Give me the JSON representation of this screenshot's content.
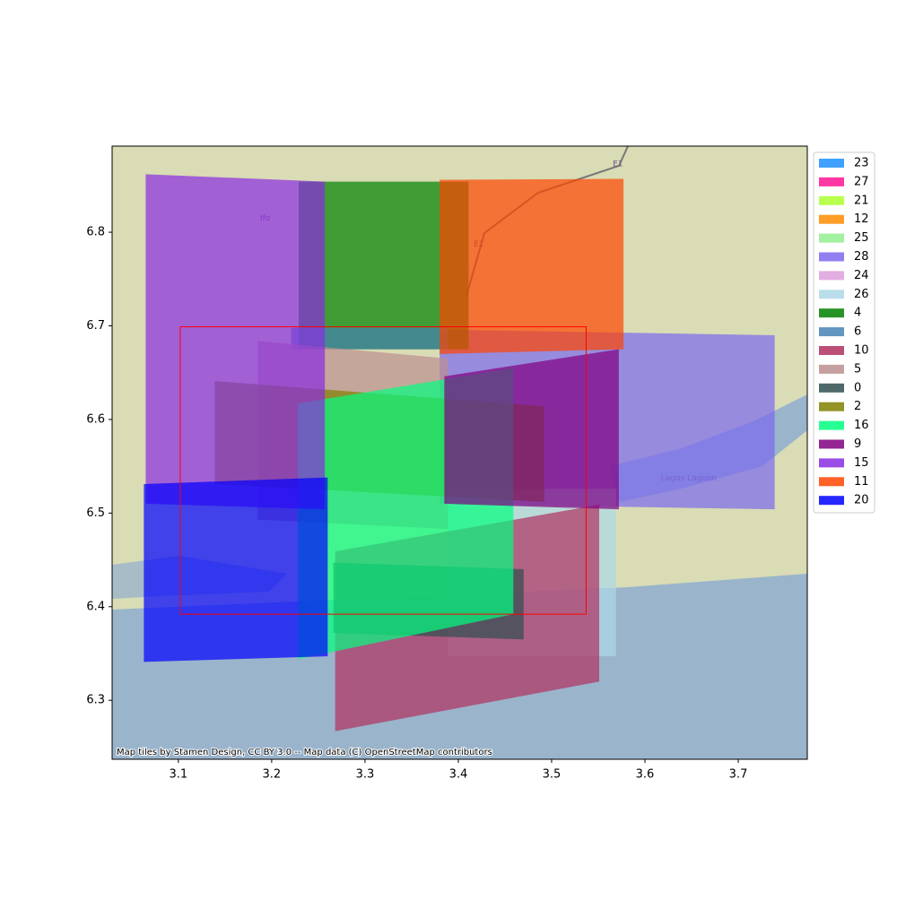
{
  "chart_data": {
    "type": "map",
    "xlim": [
      3.029,
      3.774
    ],
    "ylim": [
      6.237,
      6.892
    ],
    "xticks": [
      3.1,
      3.2,
      3.3,
      3.4,
      3.5,
      3.6,
      3.7
    ],
    "yticks": [
      6.3,
      6.4,
      6.5,
      6.6,
      6.7,
      6.8
    ],
    "bbox": {
      "color": "#ff0000",
      "x": [
        3.102,
        3.537
      ],
      "y": [
        6.392,
        6.699
      ]
    },
    "attribution": "Map tiles by Stamen Design, CC BY 3.0 -- Map data (C) OpenStreetMap contributors",
    "map_labels": [
      {
        "text": "Ifo",
        "x": 3.193,
        "y": 6.815
      },
      {
        "text": "Lagos Lagoon",
        "x": 3.647,
        "y": 6.537
      },
      {
        "text": "E1",
        "x": 3.422,
        "y": 6.787
      },
      {
        "text": "E1",
        "x": 3.571,
        "y": 6.873
      }
    ],
    "series": [
      {
        "name": "23",
        "color": "#1e90ff"
      },
      {
        "name": "27",
        "color": "#ff1493"
      },
      {
        "name": "21",
        "color": "#adff2f"
      },
      {
        "name": "12",
        "color": "#ff8c00"
      },
      {
        "name": "25",
        "color": "#90ee90"
      },
      {
        "name": "28",
        "color": "#7b68ee",
        "x": [
          3.38,
          3.739,
          3.739,
          3.38
        ],
        "y": [
          6.696,
          6.69,
          6.504,
          6.51
        ]
      },
      {
        "name": "24",
        "color": "#dda0dd"
      },
      {
        "name": "26",
        "color": "#add8e6",
        "x": [
          3.389,
          3.569,
          3.569,
          3.389
        ],
        "y": [
          6.526,
          6.526,
          6.347,
          6.347
        ]
      },
      {
        "name": "4",
        "color": "#008000",
        "x": [
          3.229,
          3.411,
          3.411,
          3.229
        ],
        "y": [
          6.854,
          6.854,
          6.675,
          6.675
        ]
      },
      {
        "name": "6",
        "color": "#4682b4",
        "x": [
          3.221,
          3.389,
          3.389,
          3.221
        ],
        "y": [
          6.698,
          6.698,
          6.675,
          6.675
        ]
      },
      {
        "name": "10",
        "color": "#b03060",
        "x": [
          3.268,
          3.551,
          3.551,
          3.268
        ],
        "y": [
          6.459,
          6.509,
          6.32,
          6.267
        ]
      },
      {
        "name": "5",
        "color": "#bc8f8f",
        "x": [
          3.185,
          3.389,
          3.389,
          3.185
        ],
        "y": [
          6.684,
          6.665,
          6.483,
          6.493
        ]
      },
      {
        "name": "0",
        "color": "#2f4f4f",
        "x": [
          3.266,
          3.47,
          3.47,
          3.266
        ],
        "y": [
          6.447,
          6.44,
          6.365,
          6.372
        ]
      },
      {
        "name": "2",
        "color": "#808000",
        "x": [
          3.139,
          3.492,
          3.492,
          3.139
        ],
        "y": [
          6.641,
          6.614,
          6.512,
          6.531
        ]
      },
      {
        "name": "16",
        "color": "#00ff7f",
        "x": [
          3.228,
          3.459,
          3.459,
          3.228
        ],
        "y": [
          6.617,
          6.655,
          6.392,
          6.344
        ]
      },
      {
        "name": "9",
        "color": "#800080",
        "x": [
          3.385,
          3.572,
          3.572,
          3.385
        ],
        "y": [
          6.646,
          6.675,
          6.504,
          6.51
        ]
      },
      {
        "name": "15",
        "color": "#8a2be2",
        "x": [
          3.065,
          3.257,
          3.257,
          3.065
        ],
        "y": [
          6.862,
          6.854,
          6.504,
          6.51
        ]
      },
      {
        "name": "11",
        "color": "#ff4500",
        "x": [
          3.38,
          3.577,
          3.577,
          3.38
        ],
        "y": [
          6.856,
          6.857,
          6.675,
          6.67
        ]
      },
      {
        "name": "20",
        "color": "#0000ff",
        "x": [
          3.063,
          3.26,
          3.26,
          3.063
        ],
        "y": [
          6.531,
          6.538,
          6.347,
          6.341
        ]
      }
    ]
  }
}
